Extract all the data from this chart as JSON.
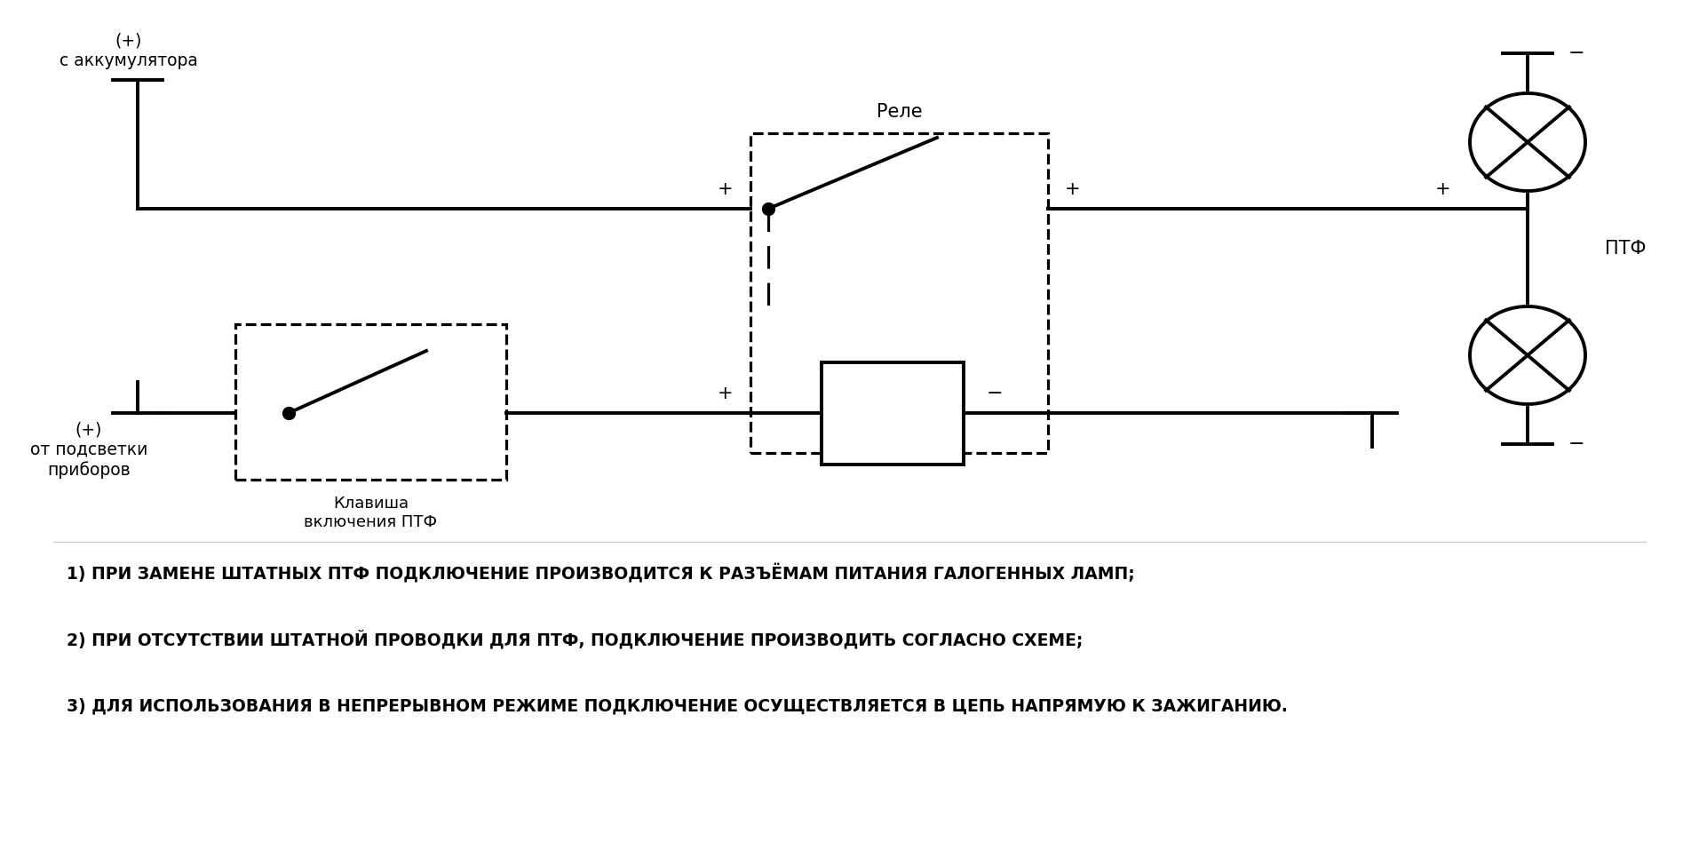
{
  "bg_color": "#ffffff",
  "line_color": "#000000",
  "lw": 2.8,
  "text_color": "#000000",
  "label_akkum": "(+)\nс аккумулятора",
  "label_podsvetka": "(+)\nот подсветки\nприборов",
  "label_relay": "Реле",
  "label_klavisha": "Клавиша\nвключения ПТФ",
  "label_ptf": "ПТФ",
  "note1": "1) ПРИ ЗАМЕНЕ ШТАТНЫХ ПТФ ПОДКЛЮЧЕНИЕ ПРОИЗВОДИТСЯ К РАЗЪЁМАМ ПИТАНИЯ ГАЛОГЕННЫХ ЛАМП;",
  "note2": "2) ПРИ ОТСУТСТВИИ ШТАТНОЙ ПРОВОДКИ ДЛЯ ПТФ, ПОДКЛЮЧЕНИЕ ПРОИЗВОДИТЬ СОГЛАСНО СХЕМЕ;",
  "note3": "3) ДЛЯ ИСПОЛЬЗОВАНИЯ В НЕПРЕРЫВНОМ РЕЖИМЕ ПОДКЛЮЧЕНИЕ ОСУЩЕСТВЛЯЕТСЯ В ЦЕПЬ НАПРЯМУЮ К ЗАЖИГАНИЮ."
}
